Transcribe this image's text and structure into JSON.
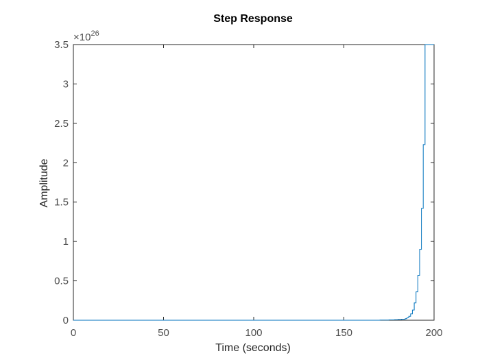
{
  "chart_data": {
    "type": "line",
    "step": true,
    "title": "Step Response",
    "xlabel": "Time (seconds)",
    "ylabel": "Amplitude",
    "xlim": [
      0,
      200
    ],
    "ylim": [
      0,
      3.5
    ],
    "y_exponent_base": "×10",
    "y_exponent_power": "26",
    "xticks": [
      0,
      50,
      100,
      150,
      200
    ],
    "xtick_labels": [
      "0",
      "50",
      "100",
      "150",
      "200"
    ],
    "yticks": [
      0,
      0.5,
      1,
      1.5,
      2,
      2.5,
      3,
      3.5
    ],
    "ytick_labels": [
      "0",
      "0.5",
      "1",
      "1.5",
      "2",
      "2.5",
      "3",
      "3.5"
    ],
    "grid": false,
    "line_color": "#0072BD",
    "series": [
      {
        "x": [
          0,
          150,
          160,
          170,
          175,
          178,
          180,
          182,
          184,
          185,
          186,
          187,
          188,
          189,
          190,
          191,
          192,
          193,
          194,
          195,
          196,
          197,
          198,
          199,
          200
        ],
        "y": [
          0,
          0.0001,
          0.0005,
          0.002,
          0.004,
          0.007,
          0.01,
          0.013,
          0.02,
          0.032,
          0.05,
          0.08,
          0.13,
          0.22,
          0.36,
          0.57,
          0.9,
          1.42,
          2.23,
          3.5,
          3.5,
          3.5,
          3.5,
          3.5,
          3.5
        ]
      }
    ]
  }
}
